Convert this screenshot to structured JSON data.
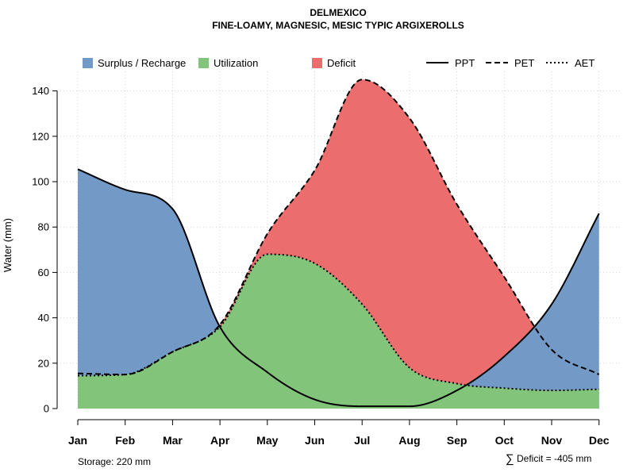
{
  "chart_data": {
    "type": "area",
    "title": "DELMEXICO",
    "subtitle": "FINE-LOAMY, MAGNESIC, MESIC TYPIC ARGIXEROLLS",
    "xlabel": "",
    "ylabel": "Water (mm)",
    "categories": [
      "Jan",
      "Feb",
      "Mar",
      "Apr",
      "May",
      "Jun",
      "Jul",
      "Aug",
      "Sep",
      "Oct",
      "Nov",
      "Dec"
    ],
    "ylim": [
      0,
      148
    ],
    "yticks": [
      0,
      20,
      40,
      60,
      80,
      100,
      120,
      140
    ],
    "series": [
      {
        "name": "PPT",
        "values": [
          105.5,
          96.5,
          88,
          36,
          16,
          4,
          1,
          1,
          8,
          23,
          46,
          86
        ]
      },
      {
        "name": "PET",
        "values": [
          15.5,
          15,
          25,
          37,
          77,
          105,
          145,
          128,
          90,
          58,
          26,
          15
        ]
      },
      {
        "name": "AET",
        "values": [
          14.5,
          15,
          25,
          36,
          68,
          64,
          46,
          18,
          11,
          9,
          8,
          8.5
        ]
      }
    ],
    "legend": {
      "areas": [
        {
          "label": "Surplus / Recharge",
          "color": "#7399c6"
        },
        {
          "label": "Utilization",
          "color": "#82c47a"
        },
        {
          "label": "Deficit",
          "color": "#ec6d6d"
        }
      ],
      "lines": [
        {
          "label": "PPT",
          "style": "solid"
        },
        {
          "label": "PET",
          "style": "dashed"
        },
        {
          "label": "AET",
          "style": "dotted"
        }
      ],
      "position": "top"
    },
    "grid": true,
    "annotations": {
      "storage": "Storage: 220 mm",
      "deficit_symbol": "∑",
      "deficit": "Deficit = -405 mm"
    }
  }
}
